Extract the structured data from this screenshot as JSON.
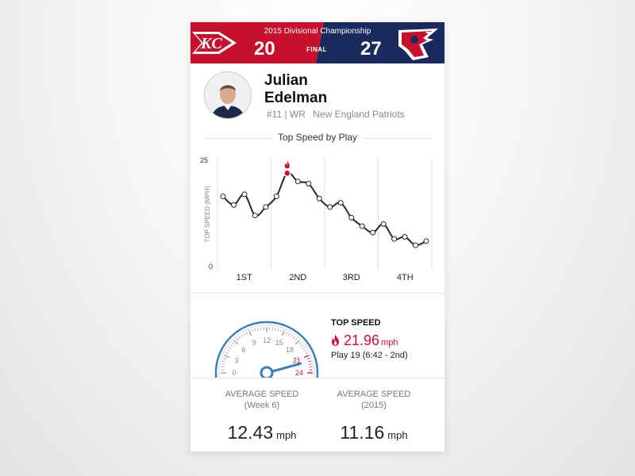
{
  "game": {
    "title": "2015 Divisional Championship",
    "home_score": "20",
    "away_score": "27",
    "status": "FINAL",
    "home_team_logo": "chiefs-logo",
    "away_team_logo": "patriots-logo",
    "home_color": "#c8102e",
    "away_color": "#1b2a5c"
  },
  "player": {
    "first_name": "Julian",
    "last_name": "Edelman",
    "number_position": "#11 | WR",
    "team": "New England Patriots"
  },
  "chart_section_title": "Top Speed by Play",
  "chart_data": {
    "type": "line",
    "title": "Top Speed by Play",
    "ylabel": "TOP SPEED (MPH)",
    "ylim": [
      0,
      25
    ],
    "yticks": [
      "25",
      "0"
    ],
    "quarters": [
      "1ST",
      "2ND",
      "3RD",
      "4TH"
    ],
    "x": [
      1,
      2,
      3,
      4,
      5,
      6,
      7,
      8,
      9,
      10,
      11,
      12,
      13,
      14,
      15,
      16,
      17,
      18,
      19,
      20
    ],
    "values": [
      16.5,
      14.5,
      17,
      12,
      14,
      16.5,
      21.96,
      20,
      19.5,
      16,
      14,
      15,
      11.5,
      9.5,
      8,
      10,
      6.5,
      7,
      5,
      6
    ],
    "highlight_index": 6,
    "line_color": "#1b2a3d",
    "highlight_color": "#d0112b"
  },
  "top_speed": {
    "label": "TOP SPEED",
    "value": "21.96",
    "unit": "mph",
    "play": "Play 19 (6:42 - 2nd)",
    "gauge_ticks": [
      "0",
      "3",
      "6",
      "9",
      "12",
      "15",
      "18",
      "21",
      "24"
    ],
    "gauge_value": 21.96,
    "gauge_color": "#3a7fb8",
    "fire_icon": "fire-icon"
  },
  "averages": [
    {
      "label_line1": "AVERAGE SPEED",
      "label_line2": "(Week 6)",
      "value": "12.43",
      "unit": "mph"
    },
    {
      "label_line1": "AVERAGE SPEED",
      "label_line2": "(2015)",
      "value": "11.16",
      "unit": "mph"
    }
  ]
}
